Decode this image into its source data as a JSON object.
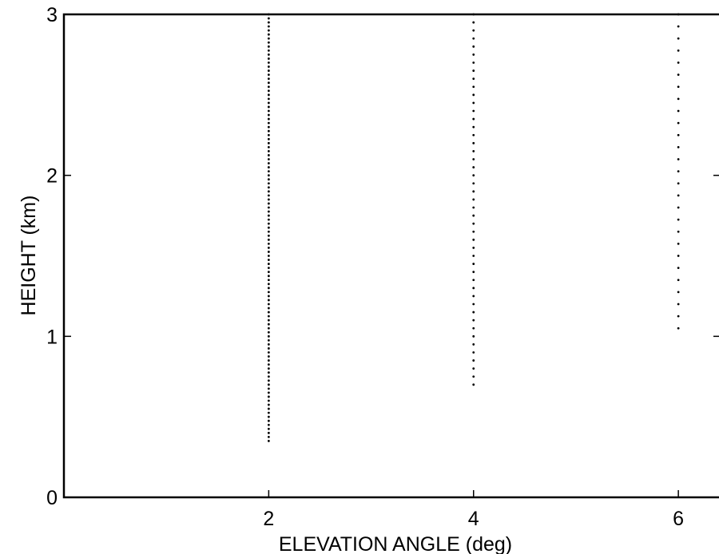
{
  "chart_data": {
    "type": "scatter",
    "xlabel": "ELEVATION ANGLE (deg)",
    "ylabel": "HEIGHT (km)",
    "xlim": [
      0,
      8
    ],
    "ylim": [
      0,
      3
    ],
    "x_ticks": [
      {
        "value": 2,
        "label": "2"
      },
      {
        "value": 4,
        "label": "4"
      },
      {
        "value": 6,
        "label": "6"
      }
    ],
    "y_ticks": [
      {
        "value": 0,
        "label": "0"
      },
      {
        "value": 1,
        "label": "1"
      },
      {
        "value": 2,
        "label": "2"
      },
      {
        "value": 3,
        "label": "3"
      }
    ],
    "grid": false,
    "point_color": "#000000",
    "series": [
      {
        "x": 2,
        "y_min": 0.35,
        "y_max": 3.0,
        "y_step": 0.025
      },
      {
        "x": 4,
        "y_min": 0.7,
        "y_max": 3.0,
        "y_step": 0.05
      },
      {
        "x": 6,
        "y_min": 1.05,
        "y_max": 3.0,
        "y_step": 0.075
      }
    ]
  }
}
